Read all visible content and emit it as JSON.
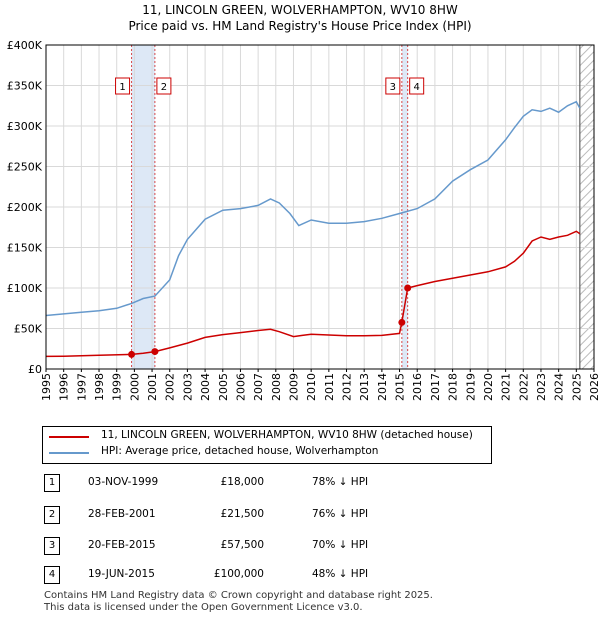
{
  "title_line1": "11, LINCOLN GREEN, WOLVERHAMPTON, WV10 8HW",
  "title_line2": "Price paid vs. HM Land Registry's House Price Index (HPI)",
  "colors": {
    "price_paid": "#cc0000",
    "hpi": "#6699cc",
    "marker": "#cc0000",
    "grid": "#d9d9d9",
    "band": "#dde8f6"
  },
  "legend": {
    "price_paid": "11, LINCOLN GREEN, WOLVERHAMPTON, WV10 8HW (detached house)",
    "hpi": "HPI: Average price, detached house, Wolverhampton"
  },
  "transactions": [
    {
      "num": "1",
      "date": "03-NOV-1999",
      "price": "£18,000",
      "hpi": "78% ↓ HPI"
    },
    {
      "num": "2",
      "date": "28-FEB-2001",
      "price": "£21,500",
      "hpi": "76% ↓ HPI"
    },
    {
      "num": "3",
      "date": "20-FEB-2015",
      "price": "£57,500",
      "hpi": "70% ↓ HPI"
    },
    {
      "num": "4",
      "date": "19-JUN-2015",
      "price": "£100,000",
      "hpi": "48% ↓ HPI"
    }
  ],
  "footer": {
    "line1": "Contains HM Land Registry data © Crown copyright and database right 2025.",
    "line2": "This data is licensed under the Open Government Licence v3.0."
  },
  "chart_data": {
    "type": "line",
    "title": "11, LINCOLN GREEN, WOLVERHAMPTON, WV10 8HW",
    "subtitle": "Price paid vs. HM Land Registry's House Price Index (HPI)",
    "xlabel": "",
    "ylabel": "",
    "xlim": [
      1995,
      2026
    ],
    "ylim": [
      0,
      400000
    ],
    "yticks": [
      0,
      50000,
      100000,
      150000,
      200000,
      250000,
      300000,
      350000,
      400000
    ],
    "ytick_labels": [
      "£0",
      "£50K",
      "£100K",
      "£150K",
      "£200K",
      "£250K",
      "£300K",
      "£350K",
      "£400K"
    ],
    "xticks": [
      1995,
      1996,
      1997,
      1998,
      1999,
      2000,
      2001,
      2002,
      2003,
      2004,
      2005,
      2006,
      2007,
      2008,
      2009,
      2010,
      2011,
      2012,
      2013,
      2014,
      2015,
      2016,
      2017,
      2018,
      2019,
      2020,
      2021,
      2022,
      2023,
      2024,
      2025,
      2026
    ],
    "xtick_labels": [
      "1995",
      "1996",
      "1997",
      "1998",
      "1999",
      "2000",
      "2001",
      "2002",
      "2003",
      "2004",
      "2005",
      "2006",
      "2007",
      "2008",
      "2009",
      "2010",
      "2011",
      "2012",
      "2013",
      "2014",
      "2015",
      "2016",
      "2017",
      "2018",
      "2019",
      "2020",
      "2021",
      "2022",
      "2023",
      "2024",
      "2025",
      "2026"
    ],
    "grid": true,
    "legend_position": "below",
    "shaded_periods": [
      [
        1999.84,
        2001.16
      ],
      [
        2015.13,
        2015.46
      ]
    ],
    "hatch_from": 2025.2,
    "series": [
      {
        "name": "11, LINCOLN GREEN, WOLVERHAMPTON, WV10 8HW (detached house)",
        "x": [
          1995,
          1996,
          1997,
          1998,
          1999.84,
          2000.5,
          2001.16,
          2002,
          2003,
          2004,
          2005,
          2006,
          2007,
          2007.7,
          2008.2,
          2009,
          2009.5,
          2010,
          2011,
          2012,
          2013,
          2014,
          2015.0,
          2015.13,
          2015.46,
          2016,
          2017,
          2018,
          2019,
          2020,
          2021,
          2021.5,
          2022,
          2022.5,
          2023,
          2023.5,
          2024,
          2024.5,
          2025,
          2025.2
        ],
        "y": [
          15500,
          15800,
          16300,
          17000,
          18000,
          19500,
          21500,
          26000,
          32000,
          39000,
          42500,
          45000,
          47500,
          49000,
          46000,
          40000,
          41500,
          43000,
          42000,
          41000,
          41000,
          41500,
          44000,
          57500,
          100000,
          103000,
          108000,
          112000,
          116000,
          120000,
          126000,
          133000,
          143000,
          158000,
          163000,
          160000,
          163000,
          165000,
          170000,
          167000
        ]
      },
      {
        "name": "HPI: Average price, detached house, Wolverhampton",
        "x": [
          1995,
          1996,
          1997,
          1998,
          1999,
          1999.84,
          2000.5,
          2001.16,
          2002,
          2002.5,
          2003,
          2004,
          2005,
          2006,
          2007,
          2007.7,
          2008.2,
          2008.8,
          2009.3,
          2010,
          2011,
          2012,
          2013,
          2014,
          2015,
          2016,
          2017,
          2018,
          2019,
          2020,
          2021,
          2021.5,
          2022,
          2022.5,
          2023,
          2023.5,
          2024,
          2024.5,
          2025,
          2025.2
        ],
        "y": [
          66000,
          68000,
          70000,
          72000,
          75000,
          81000,
          87000,
          90000,
          110000,
          140000,
          160000,
          185000,
          196000,
          198000,
          202000,
          210000,
          205000,
          192000,
          177000,
          184000,
          180000,
          180000,
          182000,
          186000,
          192000,
          198000,
          210000,
          232000,
          246000,
          258000,
          283000,
          298000,
          312000,
          320000,
          318000,
          322000,
          317000,
          325000,
          330000,
          322000
        ]
      }
    ],
    "markers": [
      {
        "label": "1",
        "x": 1999.84,
        "y": 18000
      },
      {
        "label": "2",
        "x": 2001.16,
        "y": 21500
      },
      {
        "label": "3",
        "x": 2015.13,
        "y": 57500
      },
      {
        "label": "4",
        "x": 2015.46,
        "y": 100000
      }
    ]
  }
}
